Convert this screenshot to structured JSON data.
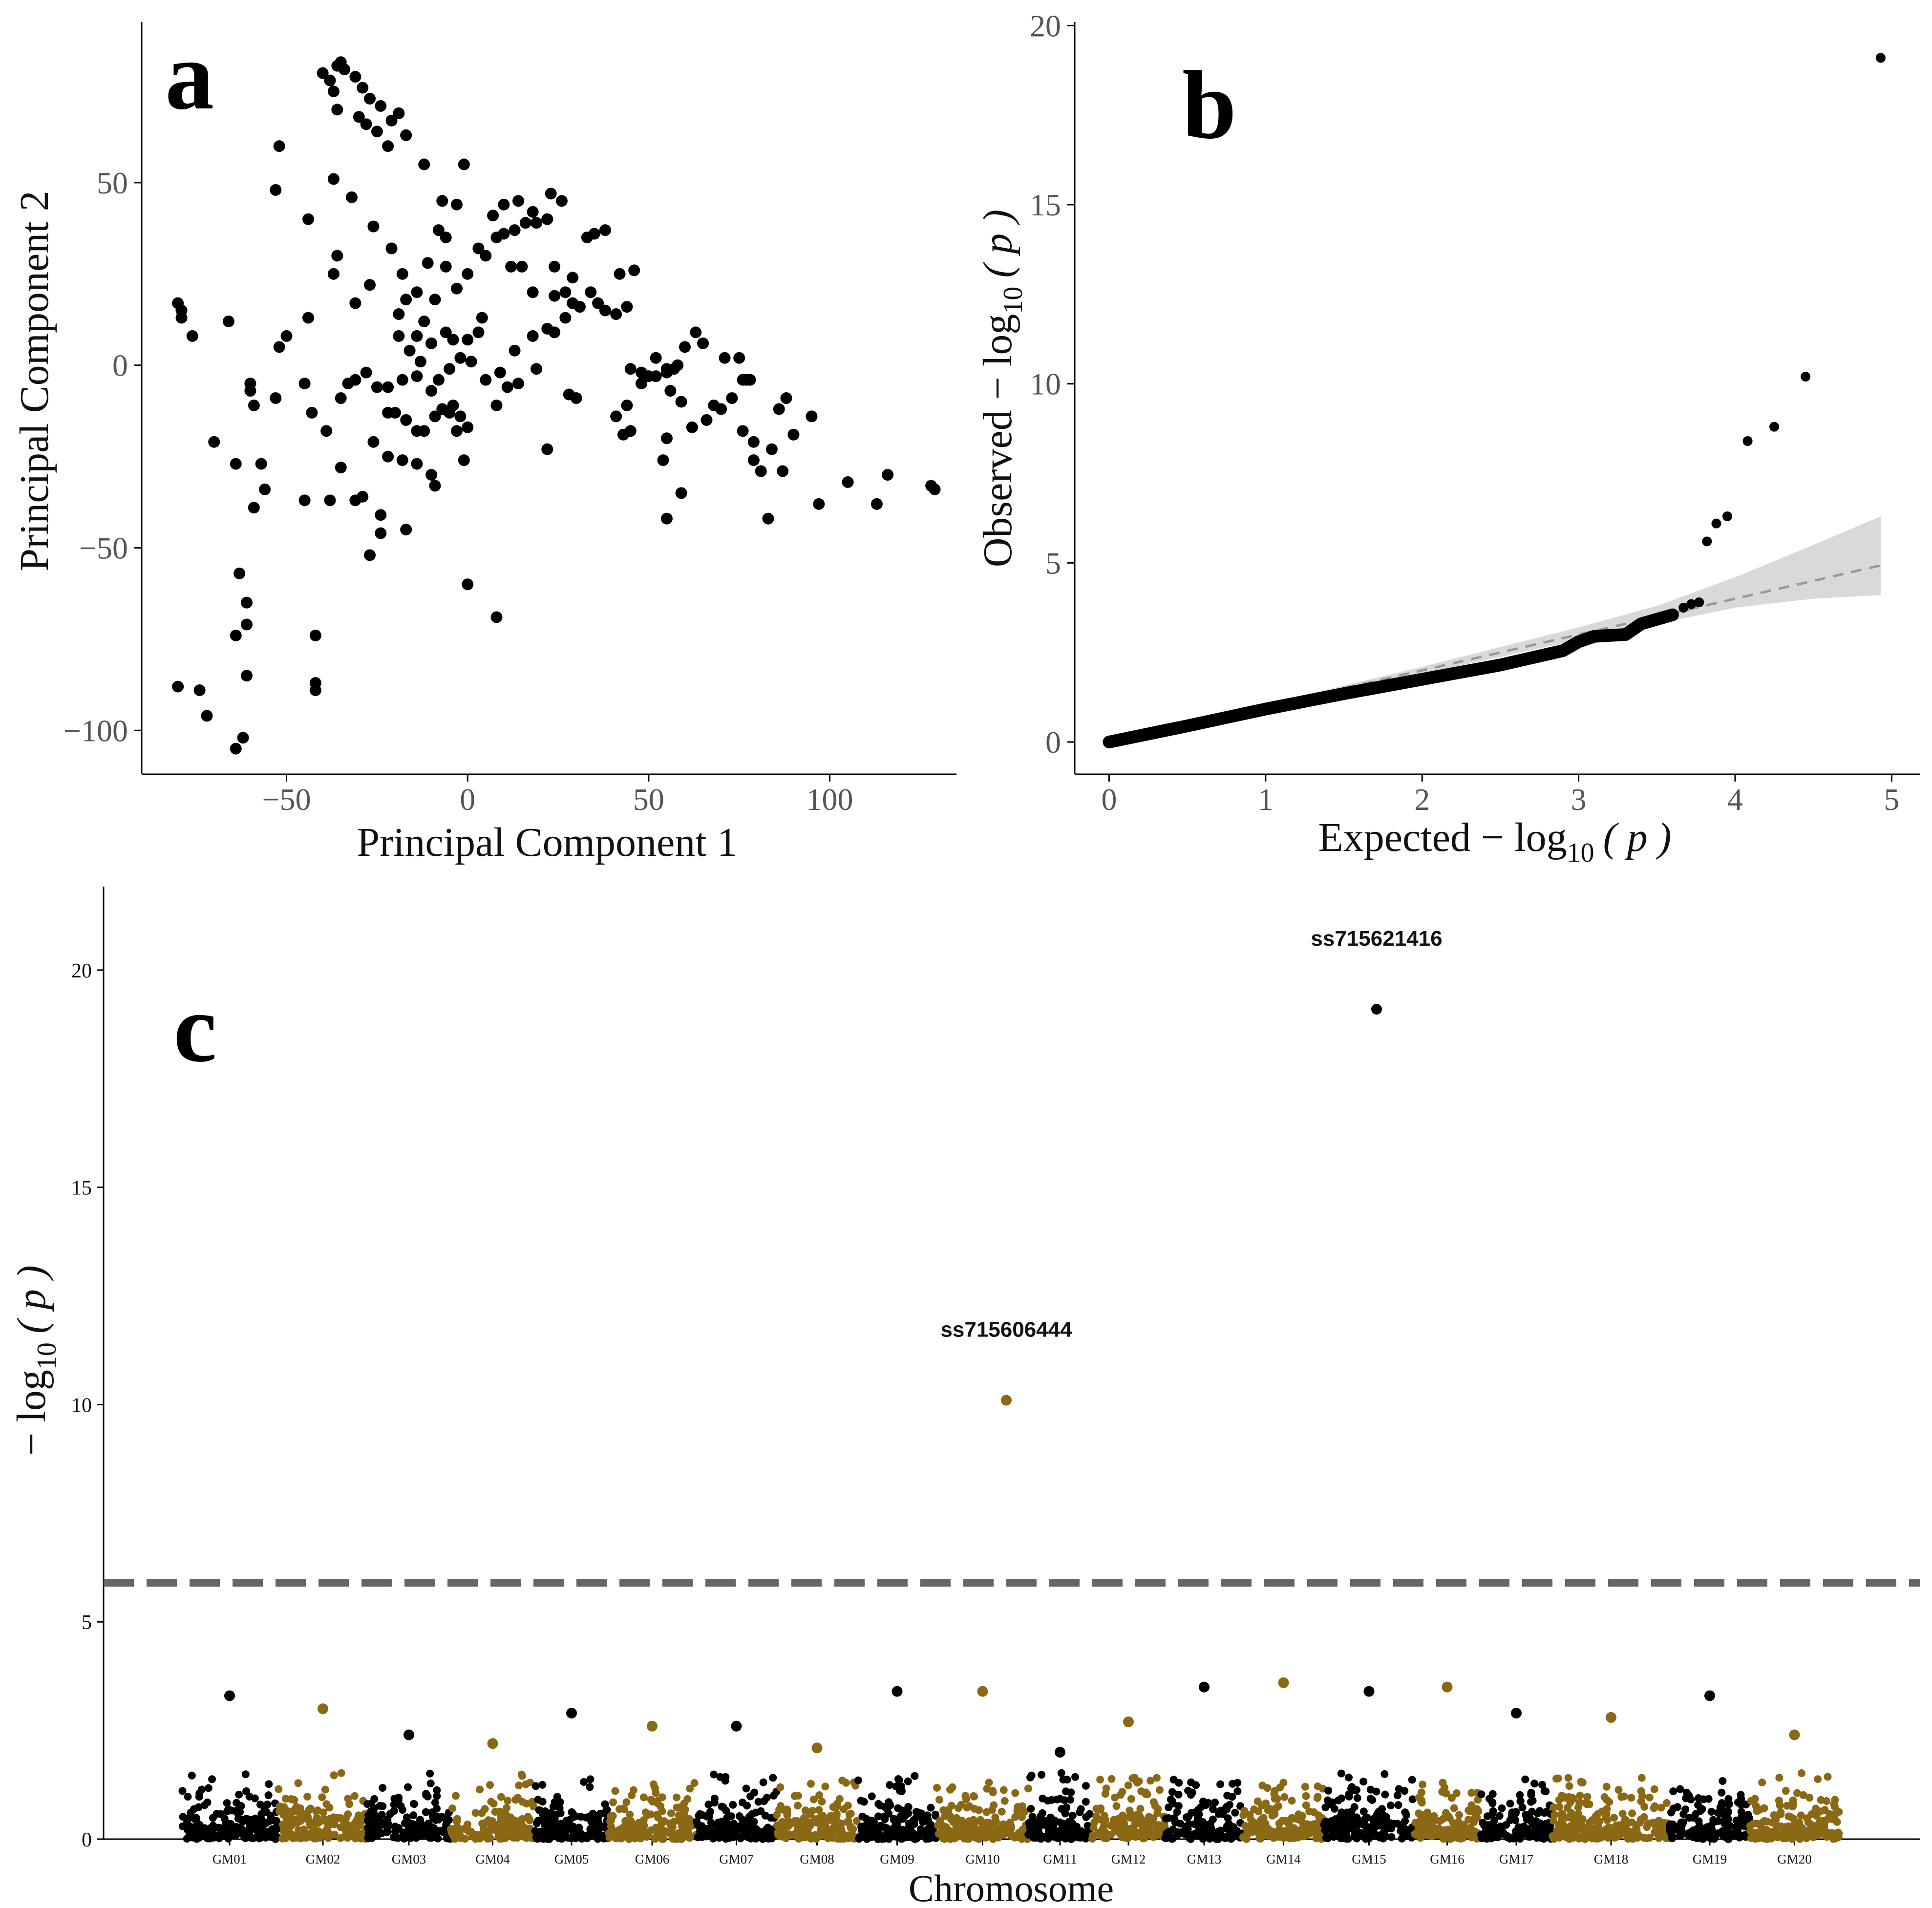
{
  "colors": {
    "black": "#000000",
    "gold": "#8B6914",
    "band": "#d9d9d9",
    "ref_line": "#999999",
    "threshold": "#666666"
  },
  "chart_data": [
    {
      "id": "a",
      "type": "scatter",
      "panel_label": "a",
      "xlabel": "Principal Component 1",
      "ylabel": "Principal Component 2",
      "xlim": [
        -90,
        135
      ],
      "ylim": [
        -112,
        94
      ],
      "xticks": [
        -50,
        0,
        50,
        100
      ],
      "xtick_labels": [
        "−50",
        "0",
        "50",
        "100"
      ],
      "yticks": [
        -100,
        -50,
        0,
        50
      ],
      "ytick_labels": [
        "−100",
        "−50",
        "0",
        "50"
      ],
      "points": [
        [
          -40,
          80
        ],
        [
          -38,
          78
        ],
        [
          -37,
          75
        ],
        [
          -36,
          82
        ],
        [
          -35,
          83
        ],
        [
          -34,
          81
        ],
        [
          -31,
          79
        ],
        [
          -29,
          76
        ],
        [
          -27,
          73
        ],
        [
          -24,
          71
        ],
        [
          -21,
          67
        ],
        [
          -19,
          69
        ],
        [
          -36,
          70
        ],
        [
          -30,
          68
        ],
        [
          -28,
          66
        ],
        [
          -25,
          64
        ],
        [
          -22,
          60
        ],
        [
          -17,
          63
        ],
        [
          -12,
          55
        ],
        [
          -1,
          55
        ],
        [
          -52,
          60
        ],
        [
          -53,
          48
        ],
        [
          -44,
          40
        ],
        [
          -37,
          51
        ],
        [
          -32,
          46
        ],
        [
          -26,
          38
        ],
        [
          -36,
          30
        ],
        [
          -37,
          25
        ],
        [
          -27,
          22
        ],
        [
          -21,
          32
        ],
        [
          -18,
          25
        ],
        [
          -17,
          18
        ],
        [
          -31,
          17
        ],
        [
          -19,
          14
        ],
        [
          -14,
          20
        ],
        [
          -11,
          28
        ],
        [
          -8,
          37
        ],
        [
          -6,
          35
        ],
        [
          -7,
          45
        ],
        [
          -3,
          44
        ],
        [
          0,
          25
        ],
        [
          -3,
          21
        ],
        [
          -6,
          27
        ],
        [
          -9,
          18
        ],
        [
          -12,
          12
        ],
        [
          -14,
          8
        ],
        [
          -16,
          4
        ],
        [
          -19,
          8
        ],
        [
          -13,
          1
        ],
        [
          -10,
          6
        ],
        [
          -6,
          9
        ],
        [
          -4,
          7
        ],
        [
          -2,
          2
        ],
        [
          0,
          7
        ],
        [
          1,
          1
        ],
        [
          3,
          9
        ],
        [
          4,
          13
        ],
        [
          -5,
          -1
        ],
        [
          -8,
          -4
        ],
        [
          -10,
          -7
        ],
        [
          -14,
          -3
        ],
        [
          -18,
          -4
        ],
        [
          -22,
          -6
        ],
        [
          -25,
          -6
        ],
        [
          -28,
          -2
        ],
        [
          -31,
          -4
        ],
        [
          -33,
          -5
        ],
        [
          -35,
          -9
        ],
        [
          -22,
          -13
        ],
        [
          -20,
          -13
        ],
        [
          -17,
          -15
        ],
        [
          -14,
          -18
        ],
        [
          -12,
          -18
        ],
        [
          -9,
          -14
        ],
        [
          -7,
          -12
        ],
        [
          -5,
          -13
        ],
        [
          -3,
          -18
        ],
        [
          -1,
          -26
        ],
        [
          -10,
          -30
        ],
        [
          -9,
          -33
        ],
        [
          -14,
          -27
        ],
        [
          -18,
          -26
        ],
        [
          -22,
          -25
        ],
        [
          -26,
          -21
        ],
        [
          -29,
          -36
        ],
        [
          -31,
          -37
        ],
        [
          -35,
          -28
        ],
        [
          -38,
          -37
        ],
        [
          -24,
          -41
        ],
        [
          -24,
          -46
        ],
        [
          -27,
          -52
        ],
        [
          -17,
          -45
        ],
        [
          -4,
          -11
        ],
        [
          -2,
          -14
        ],
        [
          0,
          -17
        ],
        [
          5,
          -4
        ],
        [
          8,
          -11
        ],
        [
          11,
          -6
        ],
        [
          14,
          -5
        ],
        [
          19,
          -1
        ],
        [
          9,
          -2
        ],
        [
          13,
          4
        ],
        [
          18,
          8
        ],
        [
          22,
          10
        ],
        [
          24,
          9
        ],
        [
          27,
          13
        ],
        [
          29,
          17
        ],
        [
          31,
          16
        ],
        [
          34,
          20
        ],
        [
          36,
          17
        ],
        [
          38,
          15
        ],
        [
          41,
          14
        ],
        [
          44,
          16
        ],
        [
          46,
          26
        ],
        [
          42,
          25
        ],
        [
          38,
          37
        ],
        [
          35,
          36
        ],
        [
          33,
          35
        ],
        [
          29,
          24
        ],
        [
          27,
          20
        ],
        [
          24,
          27
        ],
        [
          22,
          40
        ],
        [
          19,
          39
        ],
        [
          16,
          39
        ],
        [
          13,
          37
        ],
        [
          10,
          36
        ],
        [
          8,
          35
        ],
        [
          5,
          30
        ],
        [
          3,
          32
        ],
        [
          7,
          41
        ],
        [
          10,
          44
        ],
        [
          14,
          45
        ],
        [
          18,
          42
        ],
        [
          22,
          40
        ],
        [
          23,
          47
        ],
        [
          26,
          45
        ],
        [
          12,
          27
        ],
        [
          15,
          27
        ],
        [
          18,
          20
        ],
        [
          24,
          19
        ],
        [
          -80,
          17
        ],
        [
          -79,
          15
        ],
        [
          -79,
          13
        ],
        [
          -76,
          8
        ],
        [
          -66,
          12
        ],
        [
          -60,
          -5
        ],
        [
          -60,
          -7
        ],
        [
          -59,
          -11
        ],
        [
          -53,
          -9
        ],
        [
          -57,
          -27
        ],
        [
          -64,
          -27
        ],
        [
          -70,
          -21
        ],
        [
          -56,
          -34
        ],
        [
          -59,
          -39
        ],
        [
          -45,
          -37
        ],
        [
          -45,
          -5
        ],
        [
          -43,
          -13
        ],
        [
          -39,
          -18
        ],
        [
          -44,
          13
        ],
        [
          -52,
          5
        ],
        [
          -50,
          8
        ],
        [
          -63,
          -57
        ],
        [
          -61,
          -65
        ],
        [
          -64,
          -74
        ],
        [
          -61,
          -71
        ],
        [
          -61,
          -85
        ],
        [
          -62,
          -102
        ],
        [
          -64,
          -105
        ],
        [
          -42,
          -74
        ],
        [
          -42,
          -87
        ],
        [
          -42,
          -89
        ],
        [
          -80,
          -88
        ],
        [
          -74,
          -89
        ],
        [
          -72,
          -96
        ],
        [
          0,
          -60
        ],
        [
          8,
          -69
        ],
        [
          22,
          -23
        ],
        [
          28,
          -8
        ],
        [
          30,
          -9
        ],
        [
          41,
          -14
        ],
        [
          43,
          -19
        ],
        [
          45,
          -18
        ],
        [
          48,
          -2
        ],
        [
          50,
          -3
        ],
        [
          52,
          -3
        ],
        [
          55,
          -2
        ],
        [
          57,
          -1
        ],
        [
          56,
          -7
        ],
        [
          59,
          -10
        ],
        [
          55,
          -20
        ],
        [
          54,
          -26
        ],
        [
          59,
          -35
        ],
        [
          55,
          -42
        ],
        [
          62,
          -17
        ],
        [
          66,
          -15
        ],
        [
          68,
          -11
        ],
        [
          70,
          -12
        ],
        [
          73,
          -9
        ],
        [
          76,
          -4
        ],
        [
          78,
          -4
        ],
        [
          76,
          -18
        ],
        [
          79,
          -21
        ],
        [
          79,
          -26
        ],
        [
          81,
          -29
        ],
        [
          84,
          -23
        ],
        [
          86,
          -12
        ],
        [
          88,
          -9
        ],
        [
          90,
          -19
        ],
        [
          95,
          -14
        ],
        [
          97,
          -38
        ],
        [
          105,
          -32
        ],
        [
          113,
          -38
        ],
        [
          116,
          -30
        ],
        [
          128,
          -33
        ],
        [
          129,
          -34
        ],
        [
          83,
          -42
        ],
        [
          87,
          -29
        ],
        [
          55,
          -1
        ],
        [
          60,
          5
        ],
        [
          63,
          9
        ],
        [
          65,
          6
        ],
        [
          71,
          2
        ],
        [
          75,
          2
        ],
        [
          77,
          -4
        ],
        [
          58,
          0
        ],
        [
          52,
          2
        ],
        [
          48,
          -5
        ],
        [
          45,
          -1
        ],
        [
          44,
          -11
        ]
      ]
    },
    {
      "id": "b",
      "type": "scatter",
      "panel_label": "b",
      "xlabel_prefix": "Expected − log",
      "xlabel_sub": "10",
      "xlabel_suffix": "( p )",
      "ylabel_prefix": "Observed − log",
      "ylabel_sub": "10",
      "ylabel_suffix": "( p )",
      "xlim": [
        -0.22,
        5.18
      ],
      "ylim": [
        -0.9,
        20.1
      ],
      "xticks": [
        0,
        1,
        2,
        3,
        4,
        5
      ],
      "xtick_labels": [
        "0",
        "1",
        "2",
        "3",
        "4",
        "5"
      ],
      "yticks": [
        0,
        5,
        10,
        15,
        20
      ],
      "ytick_labels": [
        "0",
        "5",
        "10",
        "15",
        "20"
      ],
      "reference_line": {
        "from": [
          0,
          0
        ],
        "to": [
          4.93,
          4.93
        ]
      },
      "confidence_band_upper": [
        [
          0,
          0.02
        ],
        [
          1,
          1.05
        ],
        [
          2,
          2.1
        ],
        [
          3,
          3.2
        ],
        [
          3.5,
          3.8
        ],
        [
          4,
          4.6
        ],
        [
          4.5,
          5.5
        ],
        [
          4.93,
          6.3
        ]
      ],
      "confidence_band_lower": [
        [
          0,
          0
        ],
        [
          1,
          0.95
        ],
        [
          2,
          1.9
        ],
        [
          3,
          2.85
        ],
        [
          3.5,
          3.3
        ],
        [
          4,
          3.75
        ],
        [
          4.5,
          4.0
        ],
        [
          4.93,
          4.1
        ]
      ],
      "curve": [
        [
          0,
          0
        ],
        [
          0.5,
          0.45
        ],
        [
          1,
          0.92
        ],
        [
          1.5,
          1.35
        ],
        [
          2,
          1.75
        ],
        [
          2.5,
          2.15
        ],
        [
          2.9,
          2.55
        ],
        [
          3.0,
          2.8
        ],
        [
          3.1,
          2.95
        ],
        [
          3.3,
          3.0
        ],
        [
          3.4,
          3.3
        ],
        [
          3.6,
          3.55
        ]
      ],
      "points": [
        [
          3.67,
          3.75
        ],
        [
          3.72,
          3.85
        ],
        [
          3.77,
          3.9
        ],
        [
          3.82,
          5.6
        ],
        [
          3.88,
          6.1
        ],
        [
          3.95,
          6.3
        ],
        [
          4.08,
          8.4
        ],
        [
          4.25,
          8.8
        ],
        [
          4.45,
          10.2
        ],
        [
          4.93,
          19.1
        ]
      ]
    },
    {
      "id": "c",
      "type": "scatter",
      "subtype": "manhattan",
      "panel_label": "c",
      "xlabel": "Chromosome",
      "ylabel_prefix": "− log",
      "ylabel_sub": "10",
      "ylabel_suffix": "( p )",
      "ylim": [
        0,
        22
      ],
      "yticks": [
        0,
        5,
        10,
        15,
        20
      ],
      "ytick_labels": [
        "0",
        "5",
        "10",
        "15",
        "20"
      ],
      "threshold": 5.9,
      "chromosomes": [
        {
          "name": "GM01",
          "color": "black",
          "max": 3.3
        },
        {
          "name": "GM02",
          "color": "gold",
          "max": 3.0
        },
        {
          "name": "GM03",
          "color": "black",
          "max": 2.4
        },
        {
          "name": "GM04",
          "color": "gold",
          "max": 2.2
        },
        {
          "name": "GM05",
          "color": "black",
          "max": 2.9
        },
        {
          "name": "GM06",
          "color": "gold",
          "max": 2.6
        },
        {
          "name": "GM07",
          "color": "black",
          "max": 2.6
        },
        {
          "name": "GM08",
          "color": "gold",
          "max": 2.1
        },
        {
          "name": "GM09",
          "color": "black",
          "max": 3.4
        },
        {
          "name": "GM10",
          "color": "gold",
          "max": 3.4
        },
        {
          "name": "GM11",
          "color": "black",
          "max": 2.0
        },
        {
          "name": "GM12",
          "color": "gold",
          "max": 2.7
        },
        {
          "name": "GM13",
          "color": "black",
          "max": 3.5
        },
        {
          "name": "GM14",
          "color": "gold",
          "max": 3.6
        },
        {
          "name": "GM15",
          "color": "black",
          "max": 3.4
        },
        {
          "name": "GM16",
          "color": "gold",
          "max": 3.5
        },
        {
          "name": "GM17",
          "color": "black",
          "max": 2.9
        },
        {
          "name": "GM18",
          "color": "gold",
          "max": 2.8
        },
        {
          "name": "GM19",
          "color": "black",
          "max": 3.3
        },
        {
          "name": "GM20",
          "color": "gold",
          "max": 2.4
        }
      ],
      "highlights": [
        {
          "label": "ss715606444",
          "chromosome": "GM10",
          "value": 10.1,
          "color": "gold"
        },
        {
          "label": "ss715621416",
          "chromosome": "GM15",
          "value": 19.1,
          "color": "black"
        }
      ]
    }
  ]
}
